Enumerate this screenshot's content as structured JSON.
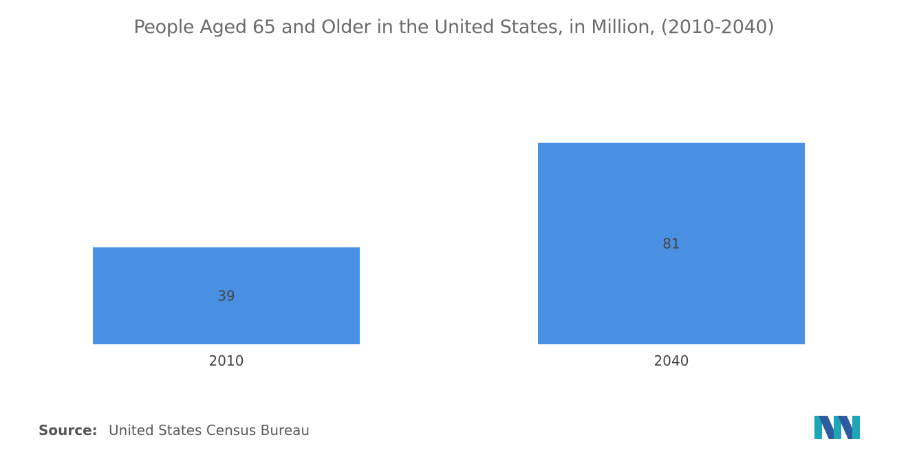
{
  "chart_data": {
    "type": "bar",
    "title": "People Aged 65 and Older in the United States, in Million, (2010-2040)",
    "categories": [
      "2010",
      "2040"
    ],
    "values": [
      39,
      81
    ],
    "data_labels": [
      "39",
      "81"
    ],
    "xlabel": "",
    "ylabel": "",
    "ylim": [
      0,
      100
    ],
    "grid": false,
    "legend": "none",
    "bar_color": "#4a90e2"
  },
  "source": {
    "label": "Source:",
    "text": "United States Census Bureau"
  },
  "logo": {
    "icon": "company-logo-icon",
    "colors": [
      "#1ea5b7",
      "#2c5c9e"
    ]
  }
}
